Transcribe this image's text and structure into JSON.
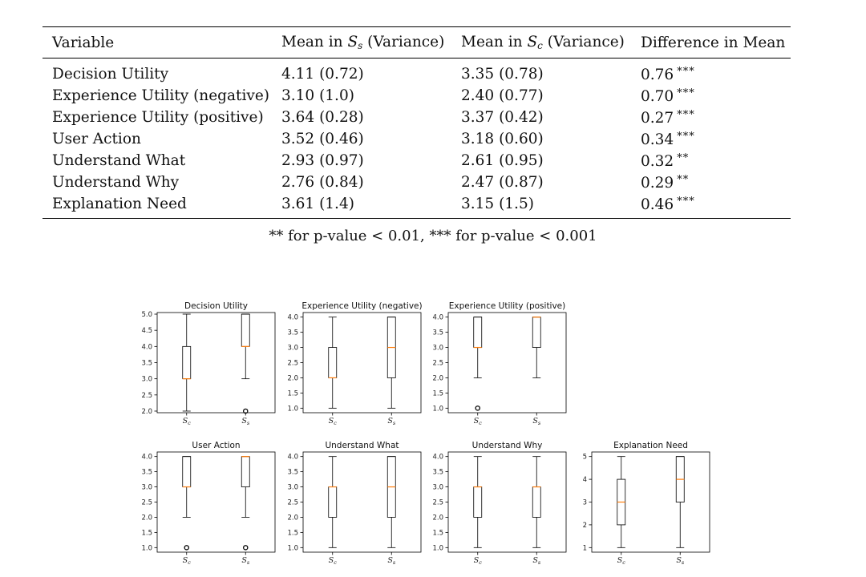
{
  "table": {
    "headers": [
      {
        "text": "Variable"
      },
      {
        "pre": "Mean in ",
        "sym": "S",
        "sub": "s",
        "post": " (Variance)"
      },
      {
        "pre": "Mean in ",
        "sym": "S",
        "sub": "c",
        "post": " (Variance)"
      },
      {
        "text": "Difference in Mean"
      }
    ],
    "rows": [
      {
        "variable": "Decision Utility",
        "mean_ss": "4.11 (0.72)",
        "mean_sc": "3.35 (0.78)",
        "diff": "0.76",
        "sig": "***"
      },
      {
        "variable": "Experience Utility (negative)",
        "mean_ss": "3.10 (1.0)",
        "mean_sc": "2.40 (0.77)",
        "diff": "0.70",
        "sig": "***"
      },
      {
        "variable": "Experience Utility (positive)",
        "mean_ss": "3.64 (0.28)",
        "mean_sc": "3.37 (0.42)",
        "diff": "0.27",
        "sig": "***"
      },
      {
        "variable": "User Action",
        "mean_ss": "3.52 (0.46)",
        "mean_sc": "3.18 (0.60)",
        "diff": "0.34",
        "sig": "***"
      },
      {
        "variable": "Understand What",
        "mean_ss": "2.93 (0.97)",
        "mean_sc": "2.61 (0.95)",
        "diff": "0.32",
        "sig": "**"
      },
      {
        "variable": "Understand Why",
        "mean_ss": "2.76 (0.84)",
        "mean_sc": "2.47 (0.87)",
        "diff": "0.29",
        "sig": "**"
      },
      {
        "variable": "Explanation Need",
        "mean_ss": "3.61 (1.4)",
        "mean_sc": "3.15 (1.5)",
        "diff": "0.46",
        "sig": "***"
      }
    ],
    "caption": "** for p-value < 0.01, *** for p-value < 0.001"
  },
  "chart_data": [
    {
      "type": "box",
      "title": "Decision Utility",
      "categories": [
        "Sc",
        "Ss"
      ],
      "ylim": [
        1.95,
        5.05
      ],
      "yticks": [
        "2.0",
        "2.5",
        "3.0",
        "3.5",
        "4.0",
        "4.5",
        "5.0"
      ],
      "boxes": [
        {
          "whislo": 2,
          "q1": 3,
          "med": 3,
          "q3": 4,
          "whishi": 5,
          "fliers": []
        },
        {
          "whislo": 3,
          "q1": 4,
          "med": 4,
          "q3": 5,
          "whishi": 5,
          "fliers": [
            2
          ]
        }
      ]
    },
    {
      "type": "box",
      "title": "Experience Utility (negative)",
      "categories": [
        "Sc",
        "Ss"
      ],
      "ylim": [
        0.85,
        4.15
      ],
      "yticks": [
        "1.0",
        "1.5",
        "2.0",
        "2.5",
        "3.0",
        "3.5",
        "4.0"
      ],
      "boxes": [
        {
          "whislo": 1,
          "q1": 2,
          "med": 2,
          "q3": 3,
          "whishi": 4,
          "fliers": []
        },
        {
          "whislo": 1,
          "q1": 2,
          "med": 3,
          "q3": 4,
          "whishi": 4,
          "fliers": []
        }
      ]
    },
    {
      "type": "box",
      "title": "Experience Utility (positive)",
      "categories": [
        "Sc",
        "Ss"
      ],
      "ylim": [
        0.85,
        4.15
      ],
      "yticks": [
        "1.0",
        "1.5",
        "2.0",
        "2.5",
        "3.0",
        "3.5",
        "4.0"
      ],
      "boxes": [
        {
          "whislo": 2,
          "q1": 3,
          "med": 3,
          "q3": 4,
          "whishi": 4,
          "fliers": [
            1
          ]
        },
        {
          "whislo": 2,
          "q1": 3,
          "med": 4,
          "q3": 4,
          "whishi": 4,
          "fliers": []
        }
      ]
    },
    {
      "type": "box",
      "title": "User Action",
      "categories": [
        "Sc",
        "Ss"
      ],
      "ylim": [
        0.85,
        4.15
      ],
      "yticks": [
        "1.0",
        "1.5",
        "2.0",
        "2.5",
        "3.0",
        "3.5",
        "4.0"
      ],
      "boxes": [
        {
          "whislo": 2,
          "q1": 3,
          "med": 3,
          "q3": 4,
          "whishi": 4,
          "fliers": [
            1
          ]
        },
        {
          "whislo": 2,
          "q1": 3,
          "med": 4,
          "q3": 4,
          "whishi": 4,
          "fliers": [
            1
          ]
        }
      ]
    },
    {
      "type": "box",
      "title": "Understand What",
      "categories": [
        "Sc",
        "Ss"
      ],
      "ylim": [
        0.85,
        4.15
      ],
      "yticks": [
        "1.0",
        "1.5",
        "2.0",
        "2.5",
        "3.0",
        "3.5",
        "4.0"
      ],
      "boxes": [
        {
          "whislo": 1,
          "q1": 2,
          "med": 3,
          "q3": 3,
          "whishi": 4,
          "fliers": []
        },
        {
          "whislo": 1,
          "q1": 2,
          "med": 3,
          "q3": 4,
          "whishi": 4,
          "fliers": []
        }
      ]
    },
    {
      "type": "box",
      "title": "Understand Why",
      "categories": [
        "Sc",
        "Ss"
      ],
      "ylim": [
        0.85,
        4.15
      ],
      "yticks": [
        "1.0",
        "1.5",
        "2.0",
        "2.5",
        "3.0",
        "3.5",
        "4.0"
      ],
      "boxes": [
        {
          "whislo": 1,
          "q1": 2,
          "med": 3,
          "q3": 3,
          "whishi": 4,
          "fliers": []
        },
        {
          "whislo": 1,
          "q1": 2,
          "med": 3,
          "q3": 3,
          "whishi": 4,
          "fliers": []
        }
      ]
    },
    {
      "type": "box",
      "title": "Explanation Need",
      "categories": [
        "Sc",
        "Ss"
      ],
      "ylim": [
        0.8,
        5.2
      ],
      "yticks": [
        "1",
        "2",
        "3",
        "4",
        "5"
      ],
      "boxes": [
        {
          "whislo": 1,
          "q1": 2,
          "med": 3,
          "q3": 4,
          "whishi": 5,
          "fliers": []
        },
        {
          "whislo": 1,
          "q1": 3,
          "med": 4,
          "q3": 5,
          "whishi": 5,
          "fliers": []
        }
      ]
    }
  ],
  "colors": {
    "median": "#ff7f0e",
    "axis": "#000000",
    "text": "#111111"
  }
}
